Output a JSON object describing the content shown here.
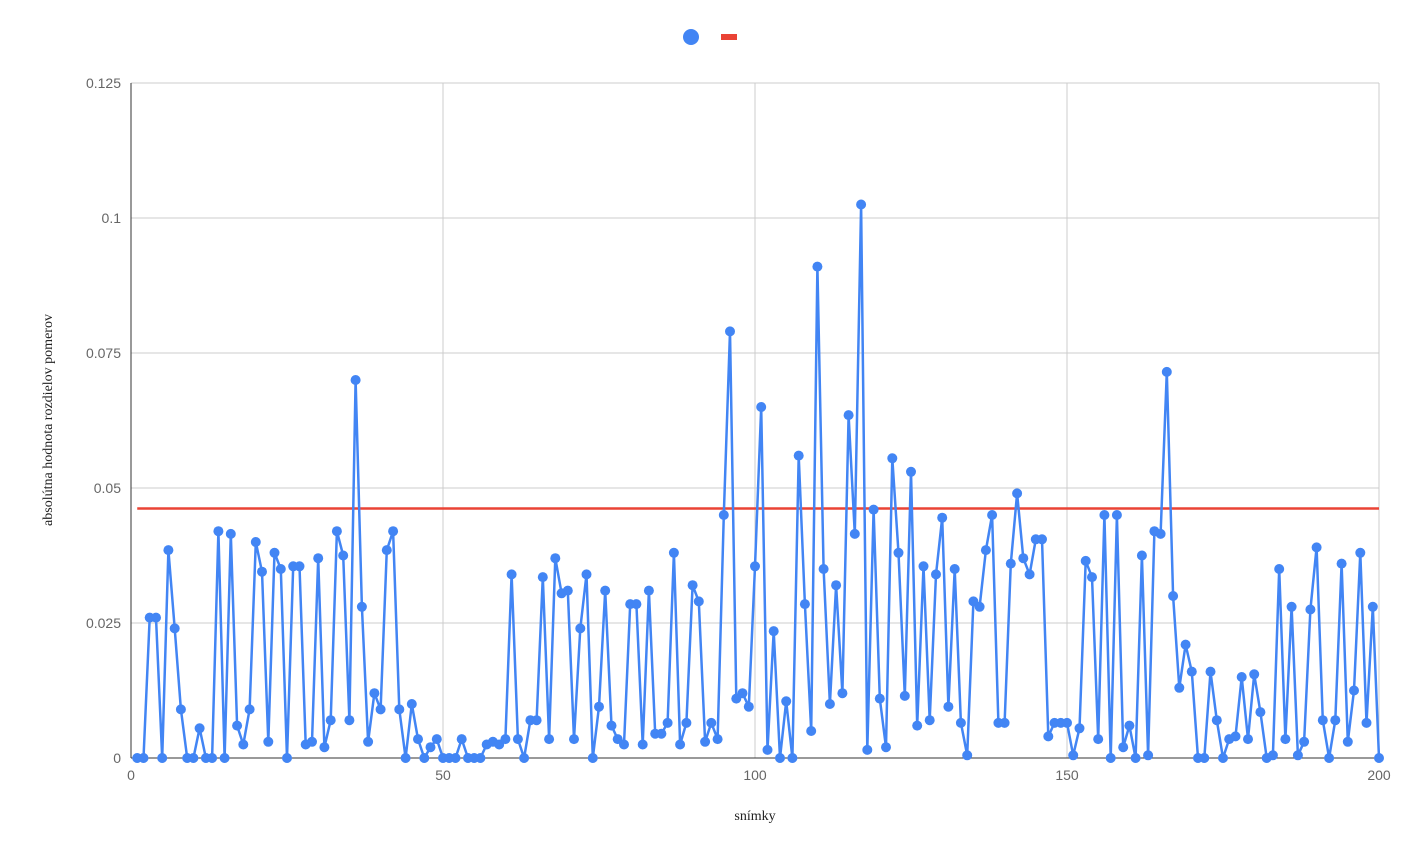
{
  "chart_data": {
    "type": "line",
    "xlabel": "snímky",
    "ylabel": "absolútna hodnota rozdielov pomerov",
    "xlim": [
      0,
      200
    ],
    "ylim": [
      0,
      0.125
    ],
    "x_ticks": [
      "0",
      "50",
      "100",
      "150",
      "200"
    ],
    "y_ticks": [
      "0",
      "0.025",
      "0.05",
      "0.075",
      "0.1",
      "0.125"
    ],
    "grid": true,
    "legend_position": "top",
    "series": [
      {
        "color": "#4285F4",
        "marker": "circle",
        "x_start": 1,
        "values": [
          0,
          0,
          0.026,
          0.026,
          0,
          0.0385,
          0.024,
          0.009,
          0,
          0,
          0.0055,
          0,
          0,
          0.042,
          0,
          0.0415,
          0.006,
          0.0025,
          0.009,
          0.04,
          0.0345,
          0.003,
          0.038,
          0.035,
          0,
          0.0355,
          0.0355,
          0.0025,
          0.003,
          0.037,
          0.002,
          0.007,
          0.042,
          0.0375,
          0.007,
          0.07,
          0.028,
          0.003,
          0.012,
          0.009,
          0.0385,
          0.042,
          0.009,
          0,
          0.01,
          0.0035,
          0,
          0.002,
          0.0035,
          0,
          0,
          0,
          0.0035,
          0,
          0,
          0,
          0.0025,
          0.003,
          0.0025,
          0.0035,
          0.034,
          0.0035,
          0,
          0.007,
          0.007,
          0.0335,
          0.0035,
          0.037,
          0.0305,
          0.031,
          0.0035,
          0.024,
          0.034,
          0,
          0.0095,
          0.031,
          0.006,
          0.0035,
          0.0025,
          0.0285,
          0.0285,
          0.0025,
          0.031,
          0.0045,
          0.0045,
          0.0065,
          0.038,
          0.0025,
          0.0065,
          0.032,
          0.029,
          0.003,
          0.0065,
          0.0035,
          0.045,
          0.079,
          0.011,
          0.012,
          0.0095,
          0.0355,
          0.065,
          0.0015,
          0.0235,
          0,
          0.0105,
          0,
          0.056,
          0.0285,
          0.005,
          0.091,
          0.035,
          0.01,
          0.032,
          0.012,
          0.0635,
          0.0415,
          0.1025,
          0.0015,
          0.046,
          0.011,
          0.002,
          0.0555,
          0.038,
          0.0115,
          0.053,
          0.006,
          0.0355,
          0.007,
          0.034,
          0.0445,
          0.0095,
          0.035,
          0.0065,
          0.0005,
          0.029,
          0.028,
          0.0385,
          0.045,
          0.0065,
          0.0065,
          0.036,
          0.049,
          0.037,
          0.034,
          0.0405,
          0.0405,
          0.004,
          0.0065,
          0.0065,
          0.0065,
          0.0005,
          0.0055,
          0.0365,
          0.0335,
          0.0035,
          0.045,
          0,
          0.045,
          0.002,
          0.006,
          0,
          0.0375,
          0.0005,
          0.042,
          0.0415,
          0.0715,
          0.03,
          0.013,
          0.021,
          0.016,
          0,
          0,
          0.016,
          0.007,
          0,
          0.0035,
          0.004,
          0.015,
          0.0035,
          0.0155,
          0.0085,
          0,
          0.0005,
          0.035,
          0.0035,
          0.028,
          0.0005,
          0.003,
          0.0275,
          0.039,
          0.007,
          0,
          0.007,
          0.036,
          0.003,
          0.0125,
          0.038,
          0.0065,
          0.028,
          0
        ]
      },
      {
        "color": "#EA4335",
        "marker": "none",
        "constant_value": 0.0462
      }
    ]
  }
}
